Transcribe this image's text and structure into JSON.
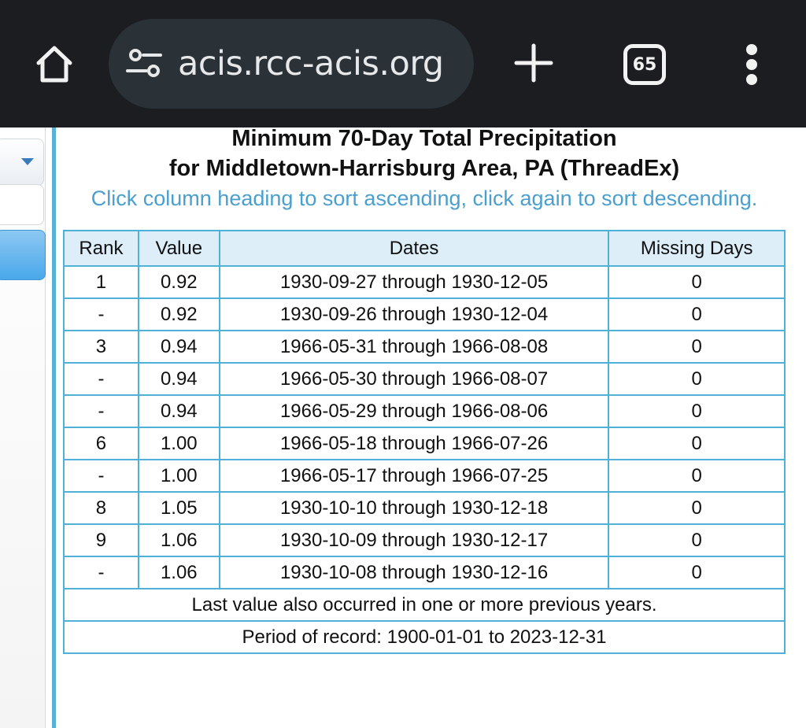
{
  "browser": {
    "url": "acis.rcc-acis.org",
    "tab_count": "65",
    "icons": {
      "home": "home-icon",
      "site_settings": "tune-icon",
      "new_tab": "plus-icon",
      "tabs": "tab-switcher-icon",
      "menu": "kebab-menu-icon"
    }
  },
  "page": {
    "title_line1": "Minimum 70-Day Total Precipitation",
    "title_line2": "for Middletown-Harrisburg Area, PA (ThreadEx)",
    "hint": "Click column heading to sort ascending, click again to sort descending."
  },
  "table": {
    "headers": [
      "Rank",
      "Value",
      "Dates",
      "Missing Days"
    ],
    "rows": [
      {
        "rank": "1",
        "value": "0.92",
        "dates": "1930-09-27 through 1930-12-05",
        "missing": "0"
      },
      {
        "rank": "-",
        "value": "0.92",
        "dates": "1930-09-26 through 1930-12-04",
        "missing": "0"
      },
      {
        "rank": "3",
        "value": "0.94",
        "dates": "1966-05-31 through 1966-08-08",
        "missing": "0"
      },
      {
        "rank": "-",
        "value": "0.94",
        "dates": "1966-05-30 through 1966-08-07",
        "missing": "0"
      },
      {
        "rank": "-",
        "value": "0.94",
        "dates": "1966-05-29 through 1966-08-06",
        "missing": "0"
      },
      {
        "rank": "6",
        "value": "1.00",
        "dates": "1966-05-18 through 1966-07-26",
        "missing": "0"
      },
      {
        "rank": "-",
        "value": "1.00",
        "dates": "1966-05-17 through 1966-07-25",
        "missing": "0"
      },
      {
        "rank": "8",
        "value": "1.05",
        "dates": "1930-10-10 through 1930-12-18",
        "missing": "0"
      },
      {
        "rank": "9",
        "value": "1.06",
        "dates": "1930-10-09 through 1930-12-17",
        "missing": "0"
      },
      {
        "rank": "-",
        "value": "1.06",
        "dates": "1930-10-08 through 1930-12-16",
        "missing": "0"
      }
    ],
    "footer_note": "Last value also occurred in one or more previous years.",
    "period_of_record": "Period of record: 1900-01-01 to 2023-12-31"
  },
  "colors": {
    "toolbar_bg": "#1b1d20",
    "urlbar_bg": "#2a3238",
    "accent_blue": "#4fb1d8",
    "hint_text": "#4a9fcf",
    "header_bg": "#ddeef9"
  }
}
